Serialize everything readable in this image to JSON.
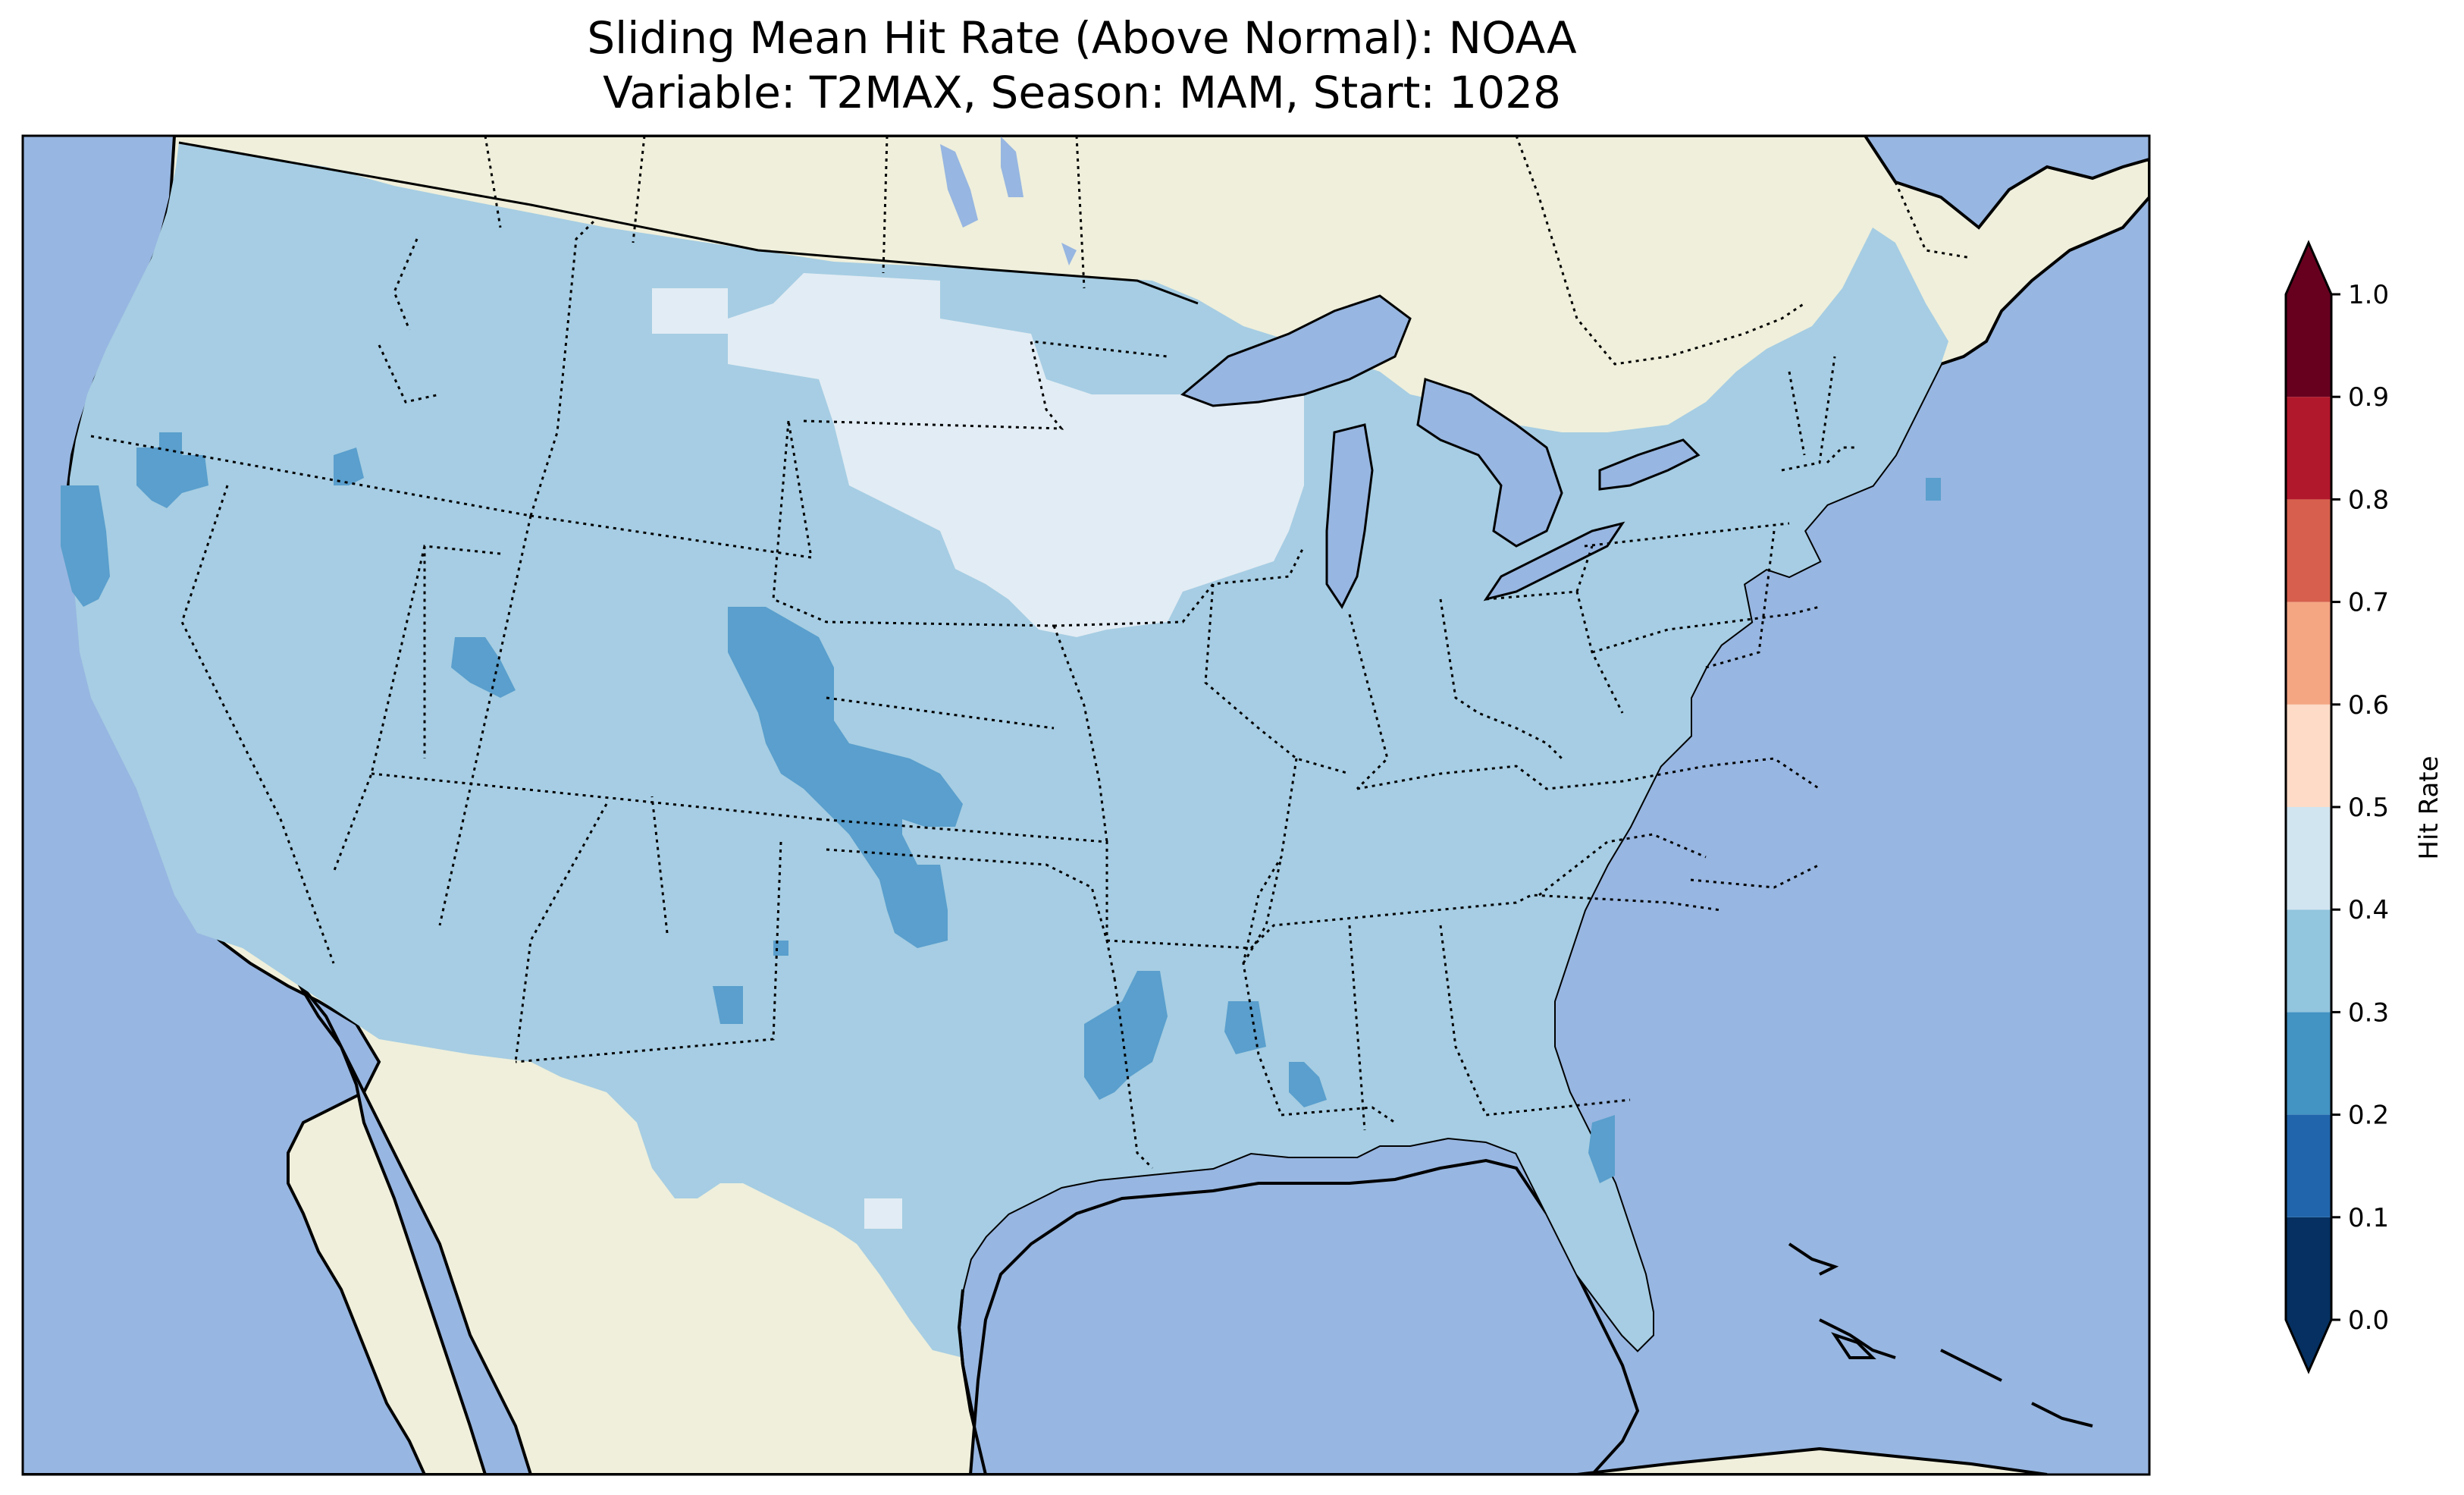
{
  "map": {
    "title_line1": "Sliding Mean Hit Rate (Above Normal): NOAA",
    "title_line2": "Variable: T2MAX, Season: MAM, Start: 1028",
    "colors": {
      "ocean": "#97b6e1",
      "land": "#efefdb",
      "lakes": "#97b6e1"
    },
    "dominant_hit_rate_bin": [
      0.3,
      0.4
    ]
  },
  "colorbar": {
    "label": "Hit Rate",
    "ticks": [
      "0.0",
      "0.1",
      "0.2",
      "0.3",
      "0.4",
      "0.5",
      "0.6",
      "0.7",
      "0.8",
      "0.9",
      "1.0"
    ],
    "bins": [
      {
        "from": 0.0,
        "to": 0.1,
        "color": "#053061"
      },
      {
        "from": 0.1,
        "to": 0.2,
        "color": "#2166ac"
      },
      {
        "from": 0.2,
        "to": 0.3,
        "color": "#4393c3"
      },
      {
        "from": 0.3,
        "to": 0.4,
        "color": "#92c5de"
      },
      {
        "from": 0.4,
        "to": 0.5,
        "color": "#d1e5f0"
      },
      {
        "from": 0.5,
        "to": 0.6,
        "color": "#fddbc7"
      },
      {
        "from": 0.6,
        "to": 0.7,
        "color": "#f4a582"
      },
      {
        "from": 0.7,
        "to": 0.8,
        "color": "#d6604d"
      },
      {
        "from": 0.8,
        "to": 0.9,
        "color": "#b2182b"
      },
      {
        "from": 0.9,
        "to": 1.0,
        "color": "#67001f"
      }
    ],
    "extend_low_color": "#053061",
    "extend_high_color": "#67001f"
  }
}
